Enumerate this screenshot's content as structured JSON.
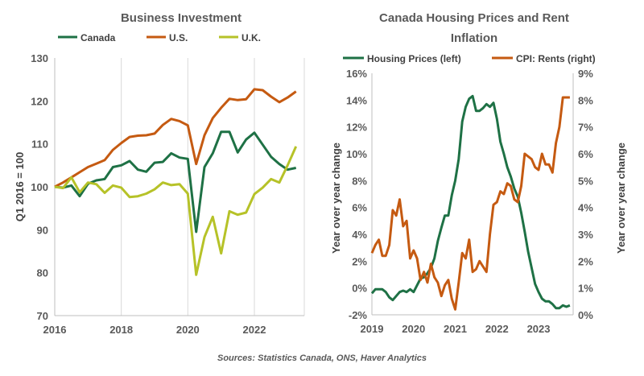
{
  "source_note": "Sources: Statistics Canada, ONS, Haver Analytics",
  "chart_data": [
    {
      "type": "line",
      "title": "Business Investment",
      "ylabel": "Q1 2016 = 100",
      "xlim": [
        2016,
        2023.5
      ],
      "ylim": [
        70,
        130
      ],
      "xticks": [
        2016,
        2018,
        2020,
        2022
      ],
      "yticks": [
        70,
        80,
        90,
        100,
        110,
        120,
        130
      ],
      "grid": "vertical",
      "legend_position": "top",
      "x": [
        2016,
        2016.25,
        2016.5,
        2016.75,
        2017,
        2017.25,
        2017.5,
        2017.75,
        2018,
        2018.25,
        2018.5,
        2018.75,
        2019,
        2019.25,
        2019.5,
        2019.75,
        2020,
        2020.25,
        2020.5,
        2020.75,
        2021,
        2021.25,
        2021.5,
        2021.75,
        2022,
        2022.25,
        2022.5,
        2022.75,
        2023,
        2023.25
      ],
      "series": [
        {
          "name": "Canada",
          "color": "#1e7145",
          "values": [
            100,
            99.8,
            100.3,
            97.8,
            100.7,
            101.5,
            101.8,
            104.6,
            105,
            106,
            104,
            103.5,
            105.6,
            105.8,
            107.8,
            106.8,
            106.5,
            89.5,
            104.6,
            107.8,
            112.8,
            112.8,
            108,
            111,
            112.6,
            109.8,
            107,
            105.3,
            104,
            104.4
          ]
        },
        {
          "name": "U.S.",
          "color": "#c55a11",
          "values": [
            100,
            101,
            102.2,
            103.4,
            104.6,
            105.4,
            106.2,
            108.6,
            110.2,
            111.6,
            111.9,
            112,
            112.4,
            114.4,
            115.8,
            115.3,
            114.3,
            105.3,
            112,
            116,
            118.4,
            120.5,
            120.2,
            120.4,
            122.7,
            122.5,
            121,
            119.7,
            120.8,
            122.2
          ]
        },
        {
          "name": "U.K.",
          "color": "#b6c228",
          "values": [
            100,
            99.7,
            102.2,
            98.7,
            101,
            100.6,
            98.6,
            100.3,
            99.8,
            97.6,
            97.8,
            98.4,
            99.4,
            101,
            100.4,
            100.6,
            98.4,
            79.5,
            88.3,
            93,
            84.5,
            94.3,
            93.5,
            94,
            98.3,
            99.8,
            101.8,
            101,
            105,
            109.4
          ]
        }
      ]
    },
    {
      "type": "line",
      "title": "Canada Housing Prices and Rent Inflation",
      "ylabel_left": "Year over year change",
      "ylabel_right": "Year over year change",
      "xlim": [
        2019,
        2023.83
      ],
      "ylim_left": [
        -2,
        16
      ],
      "ylim_right": [
        0,
        9
      ],
      "xticks": [
        2019,
        2020,
        2021,
        2022,
        2023
      ],
      "yticks_left": [
        "-2%",
        "0%",
        "2%",
        "4%",
        "6%",
        "8%",
        "10%",
        "12%",
        "14%",
        "16%"
      ],
      "yticks_right": [
        "0%",
        "1%",
        "2%",
        "3%",
        "4%",
        "5%",
        "6%",
        "7%",
        "8%",
        "9%"
      ],
      "grid": false,
      "legend_position": "top",
      "series": [
        {
          "name": "Housing Prices (left)",
          "axis": "left",
          "color": "#1e7145",
          "x": [
            2019,
            2019.083,
            2019.167,
            2019.25,
            2019.333,
            2019.417,
            2019.5,
            2019.583,
            2019.667,
            2019.75,
            2019.833,
            2019.917,
            2020,
            2020.083,
            2020.167,
            2020.25,
            2020.333,
            2020.417,
            2020.5,
            2020.583,
            2020.667,
            2020.75,
            2020.833,
            2020.917,
            2021,
            2021.083,
            2021.167,
            2021.25,
            2021.333,
            2021.417,
            2021.5,
            2021.583,
            2021.667,
            2021.75,
            2021.833,
            2021.917,
            2022,
            2022.083,
            2022.167,
            2022.25,
            2022.333,
            2022.417,
            2022.5,
            2022.583,
            2022.667,
            2022.75,
            2022.833,
            2022.917,
            2023,
            2023.083,
            2023.167,
            2023.25,
            2023.333,
            2023.417,
            2023.5,
            2023.583,
            2023.667,
            2023.75
          ],
          "values": [
            -0.4,
            -0.1,
            -0.1,
            -0.1,
            -0.3,
            -0.7,
            -0.9,
            -0.6,
            -0.3,
            -0.2,
            -0.3,
            -0.1,
            -0.3,
            0.2,
            0.7,
            0.8,
            1.1,
            1.5,
            2.2,
            3.5,
            4.5,
            5.4,
            5.4,
            6.9,
            8,
            9.6,
            12.4,
            13.5,
            14.1,
            14.3,
            13.2,
            13.2,
            13.4,
            13.7,
            13.5,
            13.8,
            12.6,
            10.9,
            10,
            9,
            8.3,
            7.4,
            6.8,
            5.6,
            4.2,
            2.7,
            1.5,
            0.3,
            -0.3,
            -0.8,
            -1,
            -1,
            -1.2,
            -1.5,
            -1.5,
            -1.3,
            -1.4,
            -1.3
          ]
        },
        {
          "name": "CPI: Rents (right)",
          "axis": "right",
          "color": "#c55a11",
          "x": [
            2019,
            2019.083,
            2019.167,
            2019.25,
            2019.333,
            2019.417,
            2019.5,
            2019.583,
            2019.667,
            2019.75,
            2019.833,
            2019.917,
            2020,
            2020.083,
            2020.167,
            2020.25,
            2020.333,
            2020.417,
            2020.5,
            2020.583,
            2020.667,
            2020.75,
            2020.833,
            2020.917,
            2021,
            2021.083,
            2021.167,
            2021.25,
            2021.333,
            2021.417,
            2021.5,
            2021.583,
            2021.667,
            2021.75,
            2021.833,
            2021.917,
            2022,
            2022.083,
            2022.167,
            2022.25,
            2022.333,
            2022.417,
            2022.5,
            2022.583,
            2022.667,
            2022.75,
            2022.833,
            2022.917,
            2023,
            2023.083,
            2023.167,
            2023.25,
            2023.333,
            2023.417,
            2023.5,
            2023.583,
            2023.667,
            2023.75
          ],
          "values": [
            2.3,
            2.6,
            2.8,
            2.2,
            2.2,
            2.6,
            3.9,
            3.7,
            4.3,
            3.3,
            3.5,
            2.1,
            2.4,
            2.1,
            1.3,
            1.6,
            1.2,
            1.9,
            1.4,
            1.2,
            0.7,
            1.1,
            1.3,
            0.6,
            0.2,
            1.2,
            2.3,
            2.1,
            2.8,
            1.6,
            1.7,
            2.0,
            1.8,
            1.6,
            3.0,
            4.1,
            4.2,
            4.6,
            4.5,
            4.9,
            4.8,
            4.3,
            4.2,
            4.8,
            6.0,
            5.9,
            5.8,
            5.5,
            5.4,
            6.0,
            5.6,
            5.6,
            5.3,
            6.4,
            7.0,
            8.1,
            8.1,
            8.1
          ]
        }
      ]
    }
  ]
}
